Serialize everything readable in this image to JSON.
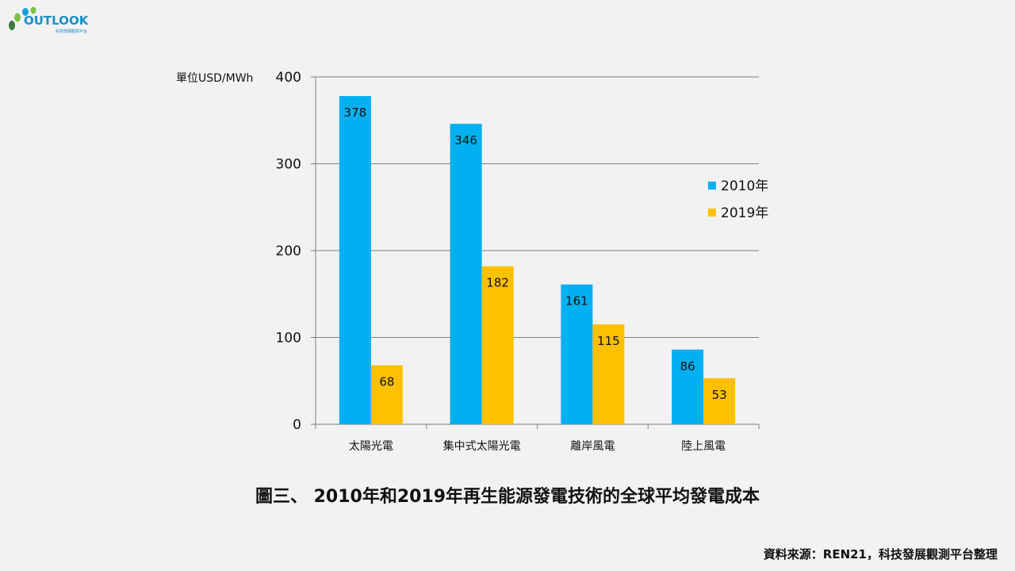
{
  "logo": {
    "text": "OUTLOOK",
    "subtitle": "科技發展觀測平台",
    "colors": [
      "#7cc243",
      "#1aa0d8",
      "#3d7a3c"
    ]
  },
  "chart_data": {
    "type": "bar",
    "title": "",
    "ylabel": "單位USD/MWh",
    "xlabel": "",
    "ylim": [
      0,
      400
    ],
    "yticks": [
      0,
      100,
      200,
      300,
      400
    ],
    "grid": true,
    "legend_position": "right",
    "categories": [
      "太陽光電",
      "集中式太陽光電",
      "離岸風電",
      "陸上風電"
    ],
    "series": [
      {
        "name": "2010年",
        "color": "#00b0f0",
        "values": [
          378,
          346,
          161,
          86
        ]
      },
      {
        "name": "2019年",
        "color": "#ffc000",
        "values": [
          68,
          182,
          115,
          53
        ]
      }
    ]
  },
  "caption": "圖三、 2010年和2019年再生能源發電技術的全球平均發電成本",
  "source": "資料來源：REN21，科技發展觀測平台整理"
}
